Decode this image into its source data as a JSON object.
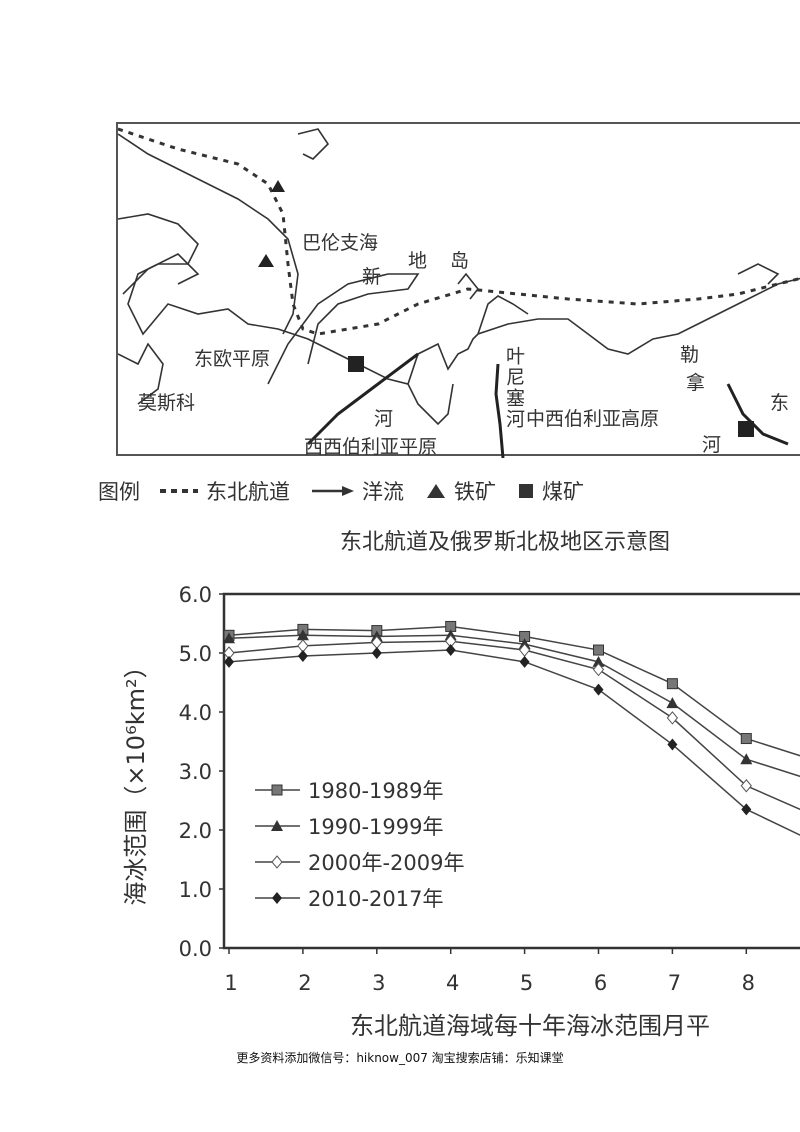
{
  "map": {
    "labels": {
      "barents_sea": "巴伦支海",
      "novaya_zemlya_1": "新",
      "novaya_zemlya_2": "地",
      "novaya_zemlya_3": "岛",
      "east_european_plain": "东欧平原",
      "moscow": "莫斯科",
      "west_siberian_plain": "西西伯利亚平原",
      "central_siberian_plateau": "中西伯利亚高原",
      "ob_river": "河",
      "yenisei_river": "叶尼塞河",
      "lena_river_1": "勒",
      "lena_river_2": "拿",
      "lena_river_3": "河",
      "east_cut": "东"
    },
    "legend": {
      "title": "图例",
      "items": [
        {
          "icon": "dashed-line-icon",
          "label": "东北航道"
        },
        {
          "icon": "arrow-icon",
          "label": "洋流"
        },
        {
          "icon": "triangle-icon",
          "label": "铁矿"
        },
        {
          "icon": "square-icon",
          "label": "煤矿"
        }
      ]
    },
    "title": "东北航道及俄罗斯北极地区示意图"
  },
  "chart_data": {
    "type": "line",
    "title": "",
    "caption": "东北航道海域每十年海冰范围月平",
    "ylabel": "海冰范围（×10⁶km²）",
    "xlabel": "",
    "x": [
      1,
      2,
      3,
      4,
      5,
      6,
      7,
      8,
      9
    ],
    "x_tick_labels": [
      "1",
      "2",
      "3",
      "4",
      "5",
      "6",
      "7",
      "8"
    ],
    "y_tick_labels": [
      "0.0",
      "1.0",
      "2.0",
      "3.0",
      "4.0",
      "5.0",
      "6.0"
    ],
    "ylim": [
      0,
      6
    ],
    "grid": false,
    "legend_position": "left-middle",
    "series": [
      {
        "name": "1980-1989年",
        "marker": "square",
        "values": [
          5.3,
          5.4,
          5.38,
          5.45,
          5.28,
          5.05,
          4.48,
          3.55,
          3.15
        ]
      },
      {
        "name": "1990-1999年",
        "marker": "triangle",
        "values": [
          5.25,
          5.3,
          5.28,
          5.3,
          5.15,
          4.85,
          4.15,
          3.2,
          2.8
        ]
      },
      {
        "name": "2000年-2009年",
        "marker": "open-diamond",
        "values": [
          5.0,
          5.12,
          5.18,
          5.2,
          5.05,
          4.72,
          3.9,
          2.75,
          2.2
        ]
      },
      {
        "name": "2010-2017年",
        "marker": "diamond",
        "values": [
          4.85,
          4.95,
          5.0,
          5.05,
          4.85,
          4.38,
          3.45,
          2.35,
          1.75
        ]
      }
    ]
  },
  "footer": "更多资料添加微信号：hiknow_007  淘宝搜索店铺：乐知课堂"
}
